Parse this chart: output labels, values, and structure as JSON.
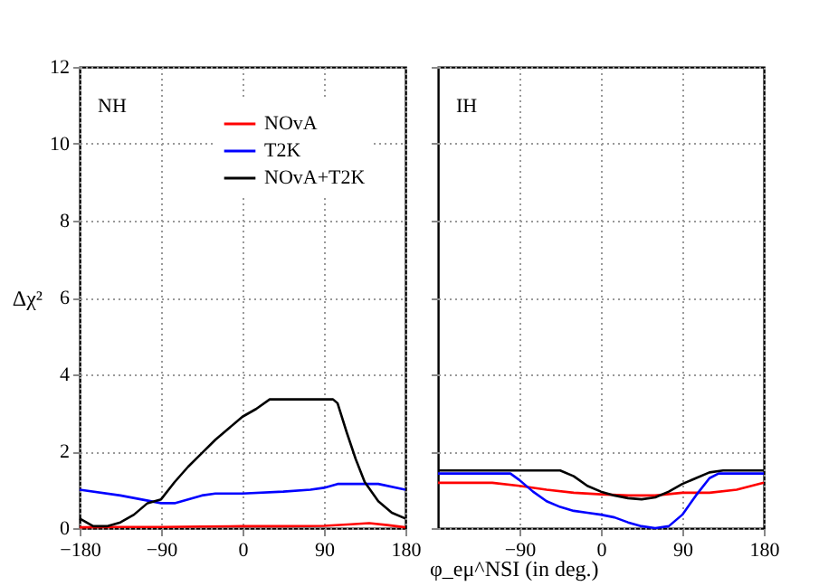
{
  "chart_data": [
    {
      "type": "line",
      "ylabel": "Δχ²",
      "annotations": [
        "NH"
      ],
      "legend": "top right",
      "grid": true,
      "xlim": [
        -180,
        180
      ],
      "xticks": [
        -180,
        -90,
        0,
        90,
        180
      ],
      "ylim": [
        0,
        12
      ],
      "yticks": [
        0,
        2,
        4,
        6,
        8,
        10,
        12
      ],
      "series": [
        {
          "name": "NOvA",
          "color": "#ff0000",
          "x": [
            -180,
            -135,
            -90,
            -45,
            0,
            45,
            90,
            120,
            140,
            160,
            180
          ],
          "values": [
            0.02,
            0.03,
            0.03,
            0.04,
            0.05,
            0.05,
            0.06,
            0.1,
            0.13,
            0.08,
            0.02
          ]
        },
        {
          "name": "T2K",
          "color": "#0000ff",
          "x": [
            -180,
            -135,
            -90,
            -75,
            -45,
            -30,
            0,
            45,
            75,
            90,
            105,
            150,
            180
          ],
          "values": [
            1.0,
            0.85,
            0.65,
            0.65,
            0.85,
            0.9,
            0.9,
            0.95,
            1.0,
            1.05,
            1.15,
            1.15,
            1.0
          ]
        },
        {
          "name": "NOvA+T2K",
          "color": "#000000",
          "x": [
            -180,
            -165,
            -150,
            -135,
            -120,
            -105,
            -90,
            -75,
            -60,
            -45,
            -30,
            -15,
            0,
            15,
            30,
            45,
            100,
            105,
            115,
            125,
            135,
            150,
            165,
            180
          ],
          "values": [
            0.25,
            0.05,
            0.05,
            0.15,
            0.35,
            0.65,
            0.75,
            1.2,
            1.6,
            1.95,
            2.3,
            2.6,
            2.9,
            3.1,
            3.35,
            3.35,
            3.35,
            3.25,
            2.5,
            1.8,
            1.2,
            0.7,
            0.4,
            0.25
          ]
        }
      ]
    },
    {
      "type": "line",
      "xlabel": "φ_eμ^NSI (in deg.)",
      "annotations": [
        "IH"
      ],
      "grid": true,
      "tick_labels": "x",
      "xlim": [
        -180,
        180
      ],
      "xticks": [
        -90,
        0,
        90,
        180
      ],
      "ylim": [
        0,
        12
      ],
      "yticks": [
        0,
        2,
        4,
        6,
        8,
        10,
        12
      ],
      "series": [
        {
          "color": "#ff0000",
          "x": [
            -180,
            -120,
            -90,
            -60,
            -30,
            0,
            30,
            60,
            90,
            120,
            150,
            180
          ],
          "values": [
            1.18,
            1.18,
            1.1,
            1.0,
            0.92,
            0.88,
            0.85,
            0.85,
            0.92,
            0.92,
            1.0,
            1.18
          ]
        },
        {
          "color": "#0000ff",
          "x": [
            -180,
            -100,
            -90,
            -75,
            -60,
            -45,
            -30,
            -15,
            0,
            15,
            30,
            45,
            60,
            75,
            90,
            105,
            120,
            130,
            180
          ],
          "values": [
            1.42,
            1.42,
            1.25,
            0.95,
            0.7,
            0.55,
            0.45,
            0.4,
            0.35,
            0.28,
            0.15,
            0.05,
            0.0,
            0.05,
            0.35,
            0.85,
            1.3,
            1.42,
            1.42
          ]
        },
        {
          "color": "#000000",
          "x": [
            -180,
            -45,
            -30,
            -15,
            0,
            15,
            30,
            45,
            60,
            75,
            90,
            105,
            120,
            135,
            180
          ],
          "values": [
            1.5,
            1.5,
            1.35,
            1.1,
            0.95,
            0.85,
            0.78,
            0.75,
            0.8,
            0.95,
            1.15,
            1.3,
            1.45,
            1.5,
            1.5
          ]
        }
      ]
    }
  ]
}
